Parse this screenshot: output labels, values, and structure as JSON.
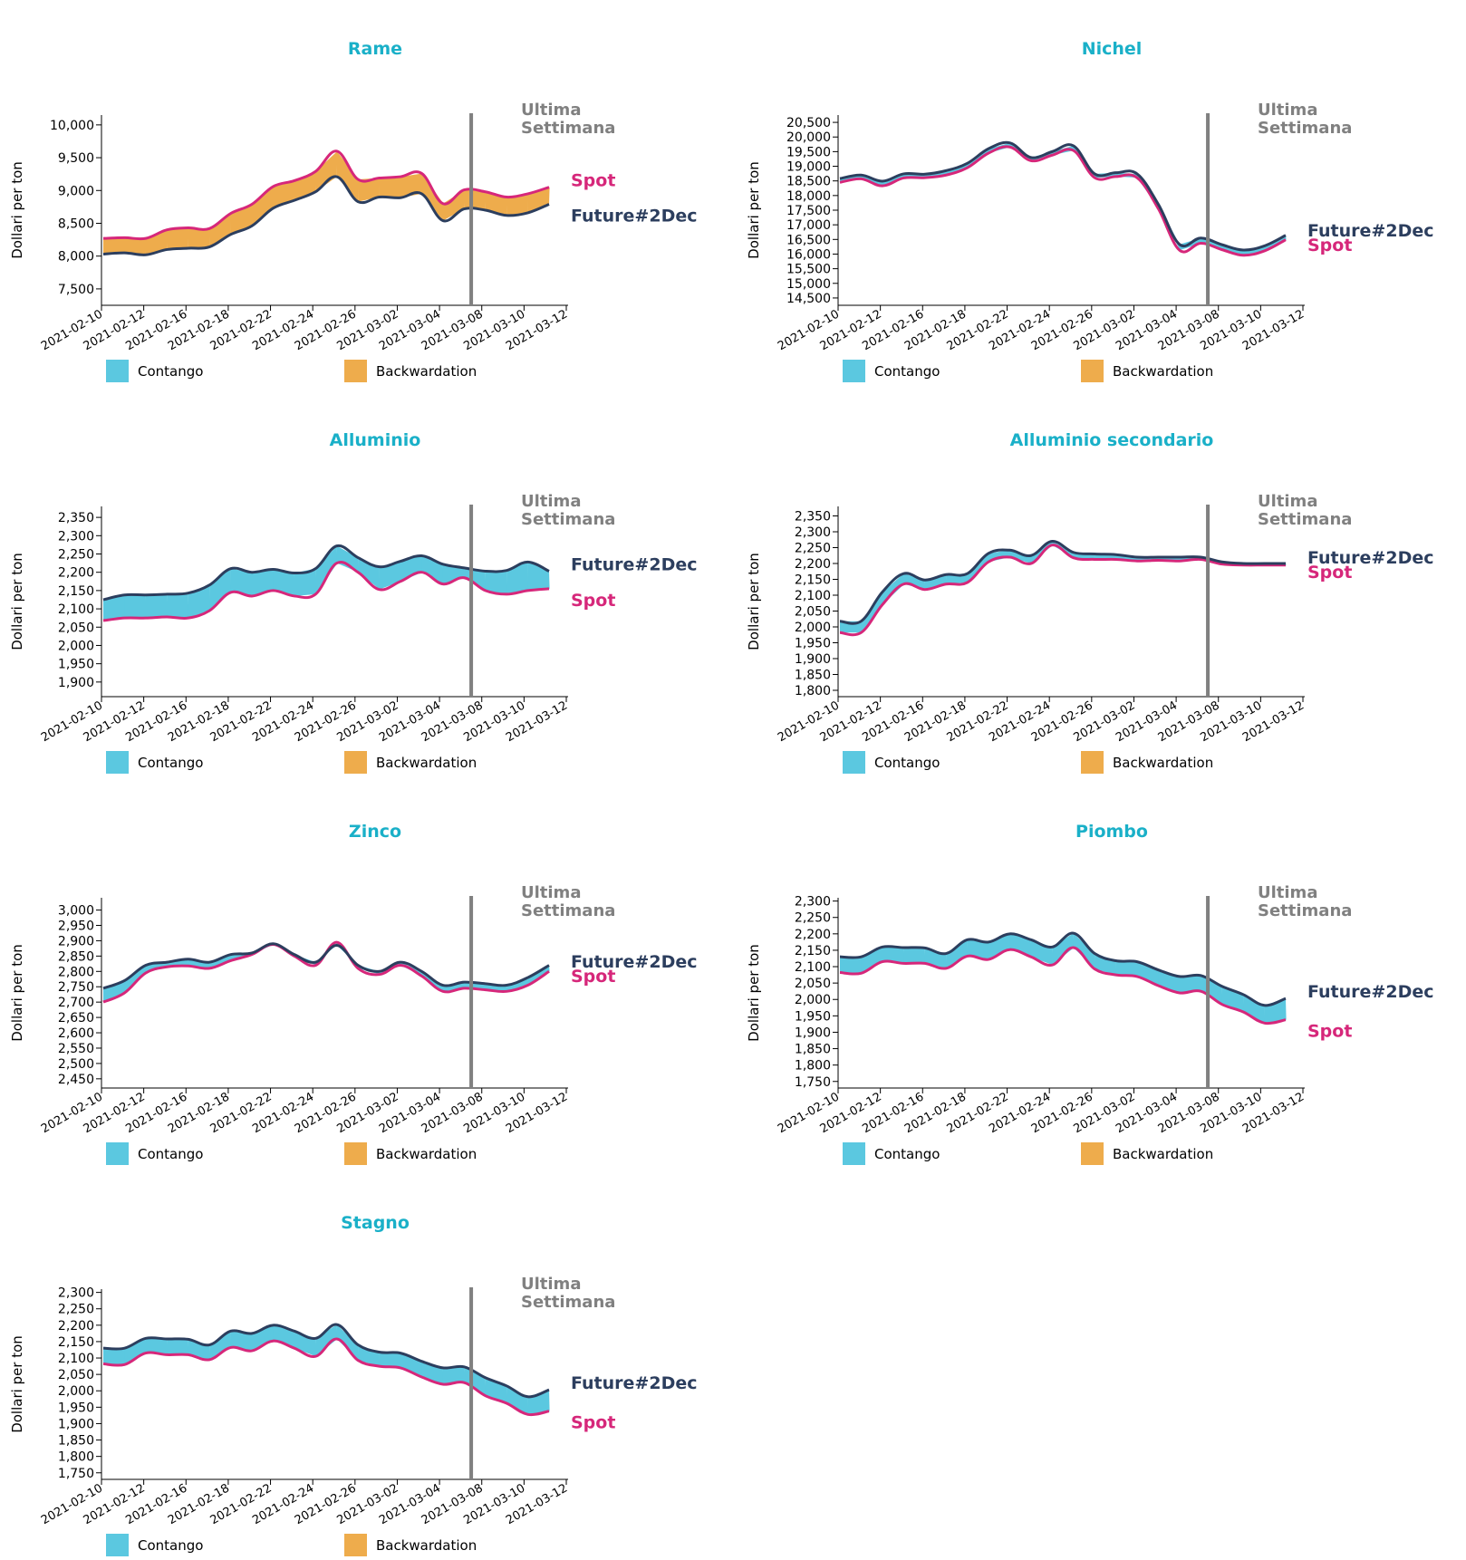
{
  "common": {
    "ylabel": "Dollari per ton",
    "marker_label_line1": "Ultima",
    "marker_label_line2": "Settimana",
    "legend_contango": "Contango",
    "legend_backwardation": "Backwardation",
    "series_future": "Future#2Dec",
    "series_spot": "Spot",
    "x_ticks": [
      "2021-02-10",
      "2021-02-12",
      "2021-02-16",
      "2021-02-18",
      "2021-02-22",
      "2021-02-24",
      "2021-02-26",
      "2021-03-02",
      "2021-03-04",
      "2021-03-08",
      "2021-03-10",
      "2021-03-12"
    ],
    "marker_after": "2021-03-04",
    "colors": {
      "title": "#1ab0c8",
      "future": "#2c3e5e",
      "spot": "#d6277a",
      "contango": "#5bc8e0",
      "backwardation": "#eeac4c",
      "marker": "#808080",
      "marker_label": "#808080",
      "axis": "#000000"
    }
  },
  "chart_data": [
    {
      "type": "area",
      "title": "Rame",
      "ylim": [
        7250,
        10150
      ],
      "y_ticks": [
        "7,500",
        "8,000",
        "8,500",
        "9,000",
        "9,500",
        "10,000"
      ],
      "y_tick_values": [
        7500,
        8000,
        8500,
        9000,
        9500,
        10000
      ],
      "x": [
        0,
        1,
        2,
        3,
        4,
        5,
        6,
        7,
        8,
        9,
        10,
        11,
        12,
        13,
        14,
        15,
        16,
        17,
        18,
        19,
        20,
        21
      ],
      "future": [
        8030,
        8050,
        8020,
        8100,
        8120,
        8140,
        8330,
        8460,
        8730,
        8850,
        8980,
        9210,
        8830,
        8900,
        8890,
        8950,
        8540,
        8720,
        8700,
        8620,
        8660,
        8790
      ],
      "spot": [
        8270,
        8280,
        8270,
        8400,
        8430,
        8420,
        8650,
        8790,
        9060,
        9150,
        9290,
        9600,
        9170,
        9190,
        9210,
        9260,
        8800,
        9010,
        8980,
        8900,
        8950,
        9050
      ]
    },
    {
      "type": "area",
      "title": "Nichel",
      "ylim": [
        14250,
        20750
      ],
      "y_ticks": [
        "14,500",
        "15,000",
        "15,500",
        "16,000",
        "16,500",
        "17,000",
        "17,500",
        "18,000",
        "18,500",
        "19,000",
        "19,500",
        "20,000",
        "20,500"
      ],
      "y_tick_values": [
        14500,
        15000,
        15500,
        16000,
        16500,
        17000,
        17500,
        18000,
        18500,
        19000,
        19500,
        20000,
        20500
      ],
      "x": [
        0,
        1,
        2,
        3,
        4,
        5,
        6,
        7,
        8,
        9,
        10,
        11,
        12,
        13,
        14,
        15,
        16,
        17,
        18,
        19,
        20,
        21
      ],
      "future": [
        18580,
        18700,
        18490,
        18740,
        18730,
        18850,
        19100,
        19600,
        19800,
        19300,
        19500,
        19700,
        18740,
        18780,
        18740,
        17700,
        16330,
        16550,
        16320,
        16140,
        16280,
        16640
      ],
      "spot": [
        18450,
        18570,
        18330,
        18600,
        18610,
        18700,
        18950,
        19450,
        19660,
        19190,
        19380,
        19540,
        18610,
        18650,
        18610,
        17550,
        16130,
        16370,
        16150,
        15960,
        16110,
        16490
      ]
    },
    {
      "type": "area",
      "title": "Alluminio",
      "ylim": [
        1860,
        2380
      ],
      "y_ticks": [
        "1,900",
        "1,950",
        "2,000",
        "2,050",
        "2,100",
        "2,150",
        "2,200",
        "2,250",
        "2,300",
        "2,350"
      ],
      "y_tick_values": [
        1900,
        1950,
        2000,
        2050,
        2100,
        2150,
        2200,
        2250,
        2300,
        2350
      ],
      "x": [
        0,
        1,
        2,
        3,
        4,
        5,
        6,
        7,
        8,
        9,
        10,
        11,
        12,
        13,
        14,
        15,
        16,
        17,
        18,
        19,
        20,
        21
      ],
      "future": [
        2125,
        2138,
        2138,
        2140,
        2143,
        2165,
        2210,
        2200,
        2208,
        2198,
        2210,
        2272,
        2240,
        2215,
        2230,
        2245,
        2222,
        2212,
        2203,
        2205,
        2228,
        2203
      ],
      "spot": [
        2068,
        2075,
        2075,
        2078,
        2075,
        2095,
        2145,
        2135,
        2150,
        2135,
        2140,
        2225,
        2200,
        2153,
        2175,
        2200,
        2168,
        2185,
        2150,
        2140,
        2150,
        2155
      ]
    },
    {
      "type": "area",
      "title": "Alluminio secondario",
      "ylim": [
        1780,
        2380
      ],
      "y_ticks": [
        "1,800",
        "1,850",
        "1,900",
        "1,950",
        "2,000",
        "2,050",
        "2,100",
        "2,150",
        "2,200",
        "2,250",
        "2,300",
        "2,350"
      ],
      "y_tick_values": [
        1800,
        1850,
        1900,
        1950,
        2000,
        2050,
        2100,
        2150,
        2200,
        2250,
        2300,
        2350
      ],
      "x": [
        0,
        1,
        2,
        3,
        4,
        5,
        6,
        7,
        8,
        9,
        10,
        11,
        12,
        13,
        14,
        15,
        16,
        17,
        18,
        19,
        20,
        21
      ],
      "future": [
        2018,
        2018,
        2110,
        2168,
        2148,
        2165,
        2168,
        2232,
        2242,
        2225,
        2270,
        2235,
        2230,
        2228,
        2220,
        2220,
        2220,
        2220,
        2205,
        2200,
        2200,
        2200
      ],
      "spot": [
        1982,
        1982,
        2070,
        2135,
        2118,
        2135,
        2140,
        2205,
        2220,
        2200,
        2258,
        2218,
        2213,
        2213,
        2208,
        2210,
        2208,
        2213,
        2198,
        2195,
        2195,
        2195
      ]
    },
    {
      "type": "area",
      "title": "Zinco",
      "ylim": [
        2420,
        3040
      ],
      "y_ticks": [
        "2,450",
        "2,500",
        "2,550",
        "2,600",
        "2,650",
        "2,700",
        "2,750",
        "2,800",
        "2,850",
        "2,900",
        "2,950",
        "3,000"
      ],
      "y_tick_values": [
        2450,
        2500,
        2550,
        2600,
        2650,
        2700,
        2750,
        2800,
        2850,
        2900,
        2950,
        3000
      ],
      "x": [
        0,
        1,
        2,
        3,
        4,
        5,
        6,
        7,
        8,
        9,
        10,
        11,
        12,
        13,
        14,
        15,
        16,
        17,
        18,
        19,
        20,
        21
      ],
      "future": [
        2745,
        2770,
        2820,
        2830,
        2840,
        2830,
        2855,
        2860,
        2890,
        2855,
        2830,
        2885,
        2820,
        2800,
        2830,
        2800,
        2755,
        2765,
        2760,
        2755,
        2780,
        2820
      ],
      "spot": [
        2700,
        2730,
        2795,
        2815,
        2818,
        2810,
        2835,
        2855,
        2888,
        2850,
        2820,
        2895,
        2810,
        2790,
        2820,
        2785,
        2735,
        2745,
        2740,
        2735,
        2755,
        2800
      ]
    },
    {
      "type": "area",
      "title": "Piombo",
      "ylim": [
        1730,
        2310
      ],
      "y_ticks": [
        "1,750",
        "1,800",
        "1,850",
        "1,900",
        "1,950",
        "2,000",
        "2,050",
        "2,100",
        "2,150",
        "2,200",
        "2,250",
        "2,300"
      ],
      "y_tick_values": [
        1750,
        1800,
        1850,
        1900,
        1950,
        2000,
        2050,
        2100,
        2150,
        2200,
        2250,
        2300
      ],
      "x": [
        0,
        1,
        2,
        3,
        4,
        5,
        6,
        7,
        8,
        9,
        10,
        11,
        12,
        13,
        14,
        15,
        16,
        17,
        18,
        19,
        20,
        21
      ],
      "future": [
        2130,
        2130,
        2160,
        2158,
        2157,
        2140,
        2182,
        2175,
        2200,
        2182,
        2160,
        2202,
        2140,
        2118,
        2115,
        2090,
        2070,
        2073,
        2040,
        2015,
        1982,
        2003
      ],
      "spot": [
        2082,
        2080,
        2115,
        2110,
        2110,
        2095,
        2132,
        2122,
        2152,
        2130,
        2105,
        2158,
        2093,
        2075,
        2070,
        2042,
        2020,
        2025,
        1985,
        1962,
        1928,
        1938
      ]
    },
    {
      "type": "area",
      "title": "Stagno",
      "ylim": [
        1730,
        2310
      ],
      "y_ticks": [
        "1,750",
        "1,800",
        "1,850",
        "1,900",
        "1,950",
        "2,000",
        "2,050",
        "2,100",
        "2,150",
        "2,200",
        "2,250",
        "2,300"
      ],
      "y_tick_values": [
        1750,
        1800,
        1850,
        1900,
        1950,
        2000,
        2050,
        2100,
        2150,
        2200,
        2250,
        2300
      ],
      "x": [
        0,
        1,
        2,
        3,
        4,
        5,
        6,
        7,
        8,
        9,
        10,
        11,
        12,
        13,
        14,
        15,
        16,
        17,
        18,
        19,
        20,
        21
      ],
      "future": [
        2130,
        2130,
        2160,
        2158,
        2157,
        2140,
        2182,
        2175,
        2200,
        2182,
        2160,
        2202,
        2140,
        2118,
        2115,
        2090,
        2070,
        2073,
        2040,
        2015,
        1982,
        2003
      ],
      "spot": [
        2082,
        2080,
        2115,
        2110,
        2110,
        2095,
        2132,
        2122,
        2152,
        2130,
        2105,
        2158,
        2093,
        2075,
        2070,
        2042,
        2020,
        2025,
        1985,
        1962,
        1928,
        1938
      ]
    }
  ]
}
